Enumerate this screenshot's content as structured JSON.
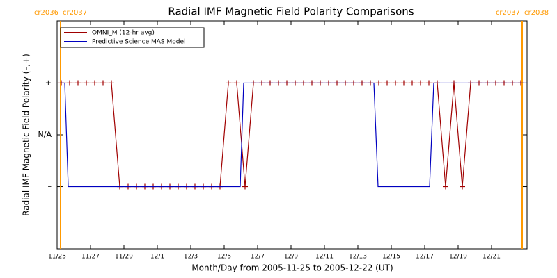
{
  "chart_data": {
    "type": "line",
    "title": "Radial IMF Magnetic Field Polarity Comparisons",
    "xlabel": "Month/Day from 2005-11-25 to 2005-12-22 (UT)",
    "ylabel": "Radial IMF Magnetic Field Polarity (–,+)",
    "xlim": [
      "2005-11-25T00:00",
      "2005-12-23T03:00"
    ],
    "xticks": [
      {
        "value": "2005-11-25T00:00",
        "label": "11/25"
      },
      {
        "value": "2005-11-27T00:00",
        "label": "11/27"
      },
      {
        "value": "2005-11-29T00:00",
        "label": "11/29"
      },
      {
        "value": "2005-12-01T00:00",
        "label": "12/1"
      },
      {
        "value": "2005-12-03T00:00",
        "label": "12/3"
      },
      {
        "value": "2005-12-05T00:00",
        "label": "12/5"
      },
      {
        "value": "2005-12-07T00:00",
        "label": "12/7"
      },
      {
        "value": "2005-12-09T00:00",
        "label": "12/9"
      },
      {
        "value": "2005-12-11T00:00",
        "label": "12/11"
      },
      {
        "value": "2005-12-13T00:00",
        "label": "12/13"
      },
      {
        "value": "2005-12-15T00:00",
        "label": "12/15"
      },
      {
        "value": "2005-12-17T00:00",
        "label": "12/17"
      },
      {
        "value": "2005-12-19T00:00",
        "label": "12/19"
      },
      {
        "value": "2005-12-21T00:00",
        "label": "12/21"
      }
    ],
    "ylim": [
      -2.2,
      2.2
    ],
    "yticks": [
      {
        "value": 1,
        "label": "+"
      },
      {
        "value": 0,
        "label": "N/A"
      },
      {
        "value": -1,
        "label": "–"
      }
    ],
    "legend": "upper left",
    "annotations": [
      {
        "x": "2005-11-25T05:00",
        "left": "cr2036",
        "right": "cr2037",
        "color": "#ff9900"
      },
      {
        "x": "2005-12-22T20:00",
        "left": "cr2037",
        "right": "cr2038",
        "color": "#ff9900"
      }
    ],
    "series": [
      {
        "name": "OMNI_M (12-hr avg)",
        "color": "#a00000",
        "marker": "+",
        "x": [
          "2005-11-25T06:00",
          "2005-11-25T18:00",
          "2005-11-26T06:00",
          "2005-11-26T18:00",
          "2005-11-27T06:00",
          "2005-11-27T18:00",
          "2005-11-28T06:00",
          "2005-11-28T18:00",
          "2005-11-29T06:00",
          "2005-11-29T18:00",
          "2005-11-30T06:00",
          "2005-11-30T18:00",
          "2005-12-01T06:00",
          "2005-12-01T18:00",
          "2005-12-02T06:00",
          "2005-12-02T18:00",
          "2005-12-03T06:00",
          "2005-12-03T18:00",
          "2005-12-04T06:00",
          "2005-12-04T18:00",
          "2005-12-05T06:00",
          "2005-12-05T18:00",
          "2005-12-06T06:00",
          "2005-12-06T18:00",
          "2005-12-07T06:00",
          "2005-12-07T18:00",
          "2005-12-08T06:00",
          "2005-12-08T18:00",
          "2005-12-09T06:00",
          "2005-12-09T18:00",
          "2005-12-10T06:00",
          "2005-12-10T18:00",
          "2005-12-11T06:00",
          "2005-12-11T18:00",
          "2005-12-12T06:00",
          "2005-12-12T18:00",
          "2005-12-13T06:00",
          "2005-12-13T18:00",
          "2005-12-14T06:00",
          "2005-12-14T18:00",
          "2005-12-15T06:00",
          "2005-12-15T18:00",
          "2005-12-16T06:00",
          "2005-12-16T18:00",
          "2005-12-17T06:00",
          "2005-12-17T18:00",
          "2005-12-18T06:00",
          "2005-12-18T18:00",
          "2005-12-19T06:00",
          "2005-12-19T18:00",
          "2005-12-20T06:00",
          "2005-12-20T18:00",
          "2005-12-21T06:00",
          "2005-12-21T18:00",
          "2005-12-22T06:00",
          "2005-12-22T18:00"
        ],
        "values": [
          1,
          1,
          1,
          1,
          1,
          1,
          1,
          -1,
          -1,
          -1,
          -1,
          -1,
          -1,
          -1,
          -1,
          -1,
          -1,
          -1,
          -1,
          -1,
          1,
          1,
          -1,
          1,
          1,
          1,
          1,
          1,
          1,
          1,
          1,
          1,
          1,
          1,
          1,
          1,
          1,
          1,
          1,
          1,
          1,
          1,
          1,
          1,
          1,
          1,
          -1,
          1,
          -1,
          1,
          1,
          1,
          1,
          1,
          1,
          1
        ]
      },
      {
        "name": "Predictive Science MAS Model",
        "color": "#0000c0",
        "x": [
          "2005-11-25T04:00",
          "2005-11-25T11:00",
          "2005-11-25T16:00",
          "2005-12-05T23:00",
          "2005-12-06T04:00",
          "2005-12-13T23:00",
          "2005-12-14T05:00",
          "2005-12-17T07:00",
          "2005-12-17T13:00",
          "2005-12-23T03:00"
        ],
        "values": [
          1,
          1,
          -1,
          -1,
          1,
          1,
          -1,
          -1,
          1,
          1
        ]
      }
    ]
  }
}
